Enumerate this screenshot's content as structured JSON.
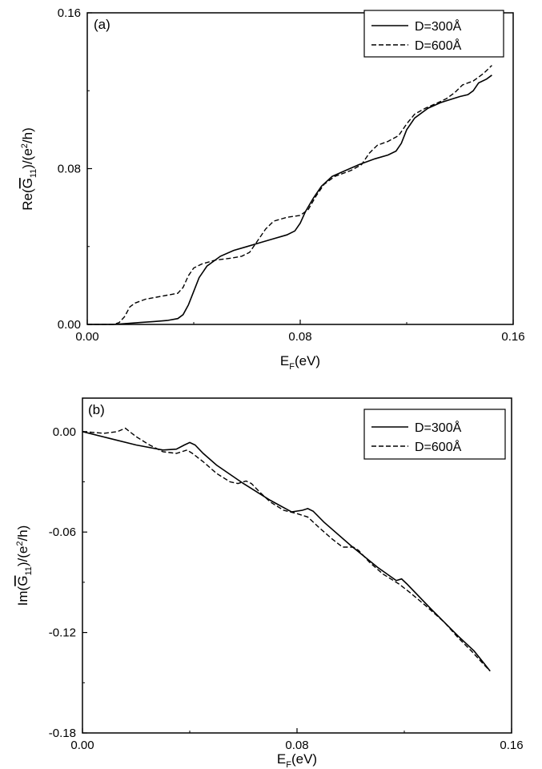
{
  "chart_data": [
    {
      "type": "line",
      "panel_label": "(a)",
      "xlabel": "E_F(eV)",
      "ylabel": "Re(Ḡ₁₁)/(e²/h)",
      "xlim": [
        0.0,
        0.16
      ],
      "ylim": [
        0.0,
        0.16
      ],
      "xticks": [
        "0.00",
        "0.08",
        "0.16"
      ],
      "yticks": [
        "0.00",
        "0.08",
        "0.16"
      ],
      "legend_position": "top-right",
      "grid": false,
      "series": [
        {
          "name": "D=300Å",
          "style": "solid",
          "points": [
            [
              0.0,
              0.0
            ],
            [
              0.005,
              0.0
            ],
            [
              0.01,
              0.0
            ],
            [
              0.015,
              0.0005
            ],
            [
              0.02,
              0.001
            ],
            [
              0.025,
              0.0015
            ],
            [
              0.03,
              0.002
            ],
            [
              0.034,
              0.003
            ],
            [
              0.036,
              0.005
            ],
            [
              0.038,
              0.01
            ],
            [
              0.04,
              0.017
            ],
            [
              0.042,
              0.024
            ],
            [
              0.045,
              0.03
            ],
            [
              0.05,
              0.035
            ],
            [
              0.055,
              0.038
            ],
            [
              0.06,
              0.04
            ],
            [
              0.065,
              0.042
            ],
            [
              0.07,
              0.044
            ],
            [
              0.075,
              0.046
            ],
            [
              0.078,
              0.048
            ],
            [
              0.08,
              0.052
            ],
            [
              0.082,
              0.058
            ],
            [
              0.085,
              0.065
            ],
            [
              0.088,
              0.071
            ],
            [
              0.092,
              0.076
            ],
            [
              0.097,
              0.079
            ],
            [
              0.102,
              0.082
            ],
            [
              0.108,
              0.085
            ],
            [
              0.113,
              0.087
            ],
            [
              0.116,
              0.089
            ],
            [
              0.118,
              0.093
            ],
            [
              0.12,
              0.1
            ],
            [
              0.123,
              0.106
            ],
            [
              0.128,
              0.111
            ],
            [
              0.133,
              0.114
            ],
            [
              0.14,
              0.117
            ],
            [
              0.143,
              0.118
            ],
            [
              0.145,
              0.12
            ],
            [
              0.147,
              0.124
            ],
            [
              0.15,
              0.126
            ],
            [
              0.152,
              0.128
            ]
          ]
        },
        {
          "name": "D=600Å",
          "style": "dashed",
          "points": [
            [
              0.0,
              0.0
            ],
            [
              0.005,
              0.0
            ],
            [
              0.01,
              0.0
            ],
            [
              0.012,
              0.001
            ],
            [
              0.014,
              0.004
            ],
            [
              0.016,
              0.009
            ],
            [
              0.018,
              0.011
            ],
            [
              0.022,
              0.013
            ],
            [
              0.026,
              0.014
            ],
            [
              0.03,
              0.015
            ],
            [
              0.034,
              0.016
            ],
            [
              0.036,
              0.019
            ],
            [
              0.038,
              0.025
            ],
            [
              0.04,
              0.029
            ],
            [
              0.043,
              0.031
            ],
            [
              0.048,
              0.033
            ],
            [
              0.054,
              0.034
            ],
            [
              0.058,
              0.035
            ],
            [
              0.061,
              0.037
            ],
            [
              0.064,
              0.043
            ],
            [
              0.067,
              0.049
            ],
            [
              0.07,
              0.053
            ],
            [
              0.075,
              0.055
            ],
            [
              0.08,
              0.056
            ],
            [
              0.083,
              0.059
            ],
            [
              0.086,
              0.066
            ],
            [
              0.089,
              0.072
            ],
            [
              0.093,
              0.076
            ],
            [
              0.099,
              0.079
            ],
            [
              0.103,
              0.082
            ],
            [
              0.106,
              0.088
            ],
            [
              0.109,
              0.092
            ],
            [
              0.113,
              0.094
            ],
            [
              0.117,
              0.097
            ],
            [
              0.12,
              0.103
            ],
            [
              0.123,
              0.108
            ],
            [
              0.127,
              0.111
            ],
            [
              0.132,
              0.114
            ],
            [
              0.135,
              0.116
            ],
            [
              0.138,
              0.119
            ],
            [
              0.141,
              0.123
            ],
            [
              0.145,
              0.125
            ],
            [
              0.149,
              0.129
            ],
            [
              0.152,
              0.133
            ]
          ]
        }
      ]
    },
    {
      "type": "line",
      "panel_label": "(b)",
      "xlabel": "E_F(eV)",
      "ylabel": "Im(Ḡ₁₁)/(e²/h)",
      "xlim": [
        0.0,
        0.16
      ],
      "ylim": [
        -0.18,
        0.02
      ],
      "xticks": [
        "0.00",
        "0.08",
        "0.16"
      ],
      "yticks": [
        "0.00",
        "-0.06",
        "-0.12",
        "-0.18"
      ],
      "legend_position": "top-right",
      "grid": false,
      "series": [
        {
          "name": "D=300Å",
          "style": "solid",
          "points": [
            [
              0.0,
              0.0
            ],
            [
              0.01,
              -0.004
            ],
            [
              0.02,
              -0.008
            ],
            [
              0.03,
              -0.011
            ],
            [
              0.035,
              -0.0105
            ],
            [
              0.038,
              -0.008
            ],
            [
              0.04,
              -0.0065
            ],
            [
              0.042,
              -0.008
            ],
            [
              0.045,
              -0.013
            ],
            [
              0.05,
              -0.02
            ],
            [
              0.06,
              -0.031
            ],
            [
              0.07,
              -0.041
            ],
            [
              0.078,
              -0.048
            ],
            [
              0.082,
              -0.047
            ],
            [
              0.084,
              -0.046
            ],
            [
              0.086,
              -0.0475
            ],
            [
              0.09,
              -0.054
            ],
            [
              0.1,
              -0.068
            ],
            [
              0.11,
              -0.081
            ],
            [
              0.117,
              -0.089
            ],
            [
              0.119,
              -0.088
            ],
            [
              0.121,
              -0.091
            ],
            [
              0.13,
              -0.106
            ],
            [
              0.14,
              -0.122
            ],
            [
              0.144,
              -0.128
            ],
            [
              0.146,
              -0.131
            ],
            [
              0.15,
              -0.139
            ],
            [
              0.152,
              -0.143
            ]
          ]
        },
        {
          "name": "D=600Å",
          "style": "dashed",
          "points": [
            [
              0.0,
              0.0
            ],
            [
              0.008,
              -0.001
            ],
            [
              0.013,
              0.0
            ],
            [
              0.016,
              0.002
            ],
            [
              0.02,
              -0.003
            ],
            [
              0.025,
              -0.008
            ],
            [
              0.03,
              -0.012
            ],
            [
              0.035,
              -0.013
            ],
            [
              0.039,
              -0.011
            ],
            [
              0.041,
              -0.013
            ],
            [
              0.045,
              -0.018
            ],
            [
              0.05,
              -0.025
            ],
            [
              0.055,
              -0.03
            ],
            [
              0.058,
              -0.031
            ],
            [
              0.061,
              -0.0295
            ],
            [
              0.063,
              -0.031
            ],
            [
              0.066,
              -0.036
            ],
            [
              0.07,
              -0.042
            ],
            [
              0.075,
              -0.047
            ],
            [
              0.08,
              -0.049
            ],
            [
              0.084,
              -0.051
            ],
            [
              0.088,
              -0.057
            ],
            [
              0.093,
              -0.064
            ],
            [
              0.097,
              -0.069
            ],
            [
              0.101,
              -0.069
            ],
            [
              0.103,
              -0.071
            ],
            [
              0.107,
              -0.078
            ],
            [
              0.112,
              -0.085
            ],
            [
              0.118,
              -0.091
            ],
            [
              0.122,
              -0.096
            ],
            [
              0.128,
              -0.104
            ],
            [
              0.135,
              -0.114
            ],
            [
              0.14,
              -0.123
            ],
            [
              0.145,
              -0.131
            ],
            [
              0.149,
              -0.138
            ],
            [
              0.152,
              -0.143
            ]
          ]
        }
      ]
    }
  ]
}
